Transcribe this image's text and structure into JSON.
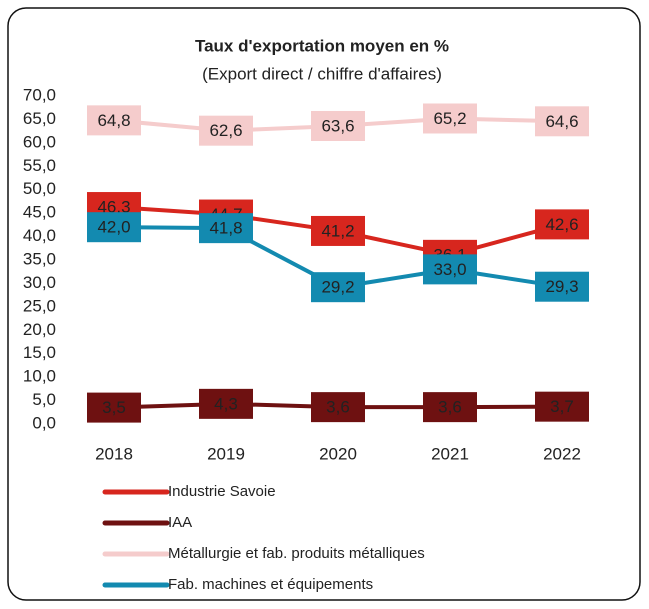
{
  "chart_data": {
    "type": "line",
    "title": "Taux d'exportation moyen en %",
    "subtitle": "(Export direct / chiffre d'affaires)",
    "categories": [
      "2018",
      "2019",
      "2020",
      "2021",
      "2022"
    ],
    "ylim": [
      0,
      70
    ],
    "yticks": [
      {
        "value": 0,
        "label": "0,0"
      },
      {
        "value": 5,
        "label": "5,0"
      },
      {
        "value": 10,
        "label": "10,0"
      },
      {
        "value": 15,
        "label": "15,0"
      },
      {
        "value": 20,
        "label": "20,0"
      },
      {
        "value": 25,
        "label": "25,0"
      },
      {
        "value": 30,
        "label": "30,0"
      },
      {
        "value": 35,
        "label": "35,0"
      },
      {
        "value": 40,
        "label": "40,0"
      },
      {
        "value": 45,
        "label": "45,0"
      },
      {
        "value": 50,
        "label": "50,0"
      },
      {
        "value": 55,
        "label": "55,0"
      },
      {
        "value": 60,
        "label": "60,0"
      },
      {
        "value": 65,
        "label": "65,0"
      },
      {
        "value": 70,
        "label": "70,0"
      }
    ],
    "grid": false,
    "series": [
      {
        "name": "Métallurgie et fab. produits métalliques",
        "color": "#f5cccc",
        "values": [
          64.8,
          62.6,
          63.6,
          65.2,
          64.6
        ],
        "value_labels": [
          "64,8",
          "62,6",
          "63,6",
          "65,2",
          "64,6"
        ]
      },
      {
        "name": "Industrie Savoie",
        "color": "#d7261e",
        "values": [
          46.3,
          44.7,
          41.2,
          36.1,
          42.6
        ],
        "value_labels": [
          "46,3",
          "44,7",
          "41,2",
          "36,1",
          "42,6"
        ]
      },
      {
        "name": "Fab. machines et équipements",
        "color": "#138ab0",
        "values": [
          42.0,
          41.8,
          29.2,
          33.0,
          29.3
        ],
        "value_labels": [
          "42,0",
          "41,8",
          "29,2",
          "33,0",
          "29,3"
        ]
      },
      {
        "name": "IAA",
        "color": "#6e1111",
        "values": [
          3.5,
          4.3,
          3.6,
          3.6,
          3.7
        ],
        "value_labels": [
          "3,5",
          "4,3",
          "3,6",
          "3,6",
          "3,7"
        ]
      }
    ],
    "legend_order": [
      1,
      3,
      0,
      2
    ]
  }
}
